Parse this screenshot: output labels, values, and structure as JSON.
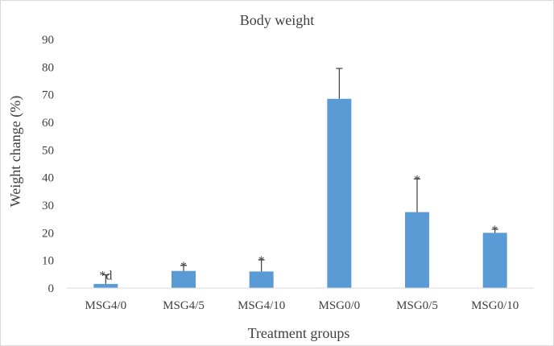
{
  "chart_data": {
    "type": "bar",
    "title": "Body weight",
    "xlabel": "Treatment groups",
    "ylabel": "Weight change (%)",
    "ylim": [
      0,
      90
    ],
    "yticks": [
      0,
      10,
      20,
      30,
      40,
      50,
      60,
      70,
      80,
      90
    ],
    "categories": [
      "MSG4/0",
      "MSG4/5",
      "MSG4/10",
      "MSG0/0",
      "MSG0/5",
      "MSG0/10"
    ],
    "values": [
      1.5,
      6.2,
      6.0,
      68.5,
      27.5,
      20.0
    ],
    "error_plus": [
      3.3,
      2.0,
      4.2,
      11.0,
      12.0,
      1.3
    ],
    "annotations": [
      "*d",
      "*",
      "*",
      "",
      "*",
      "*"
    ],
    "grid": false,
    "legend": "none",
    "colors": {
      "bar": "#5b9bd5",
      "error_bar": "#404040",
      "axis": "#d9d9d9",
      "text": "#404040"
    }
  }
}
